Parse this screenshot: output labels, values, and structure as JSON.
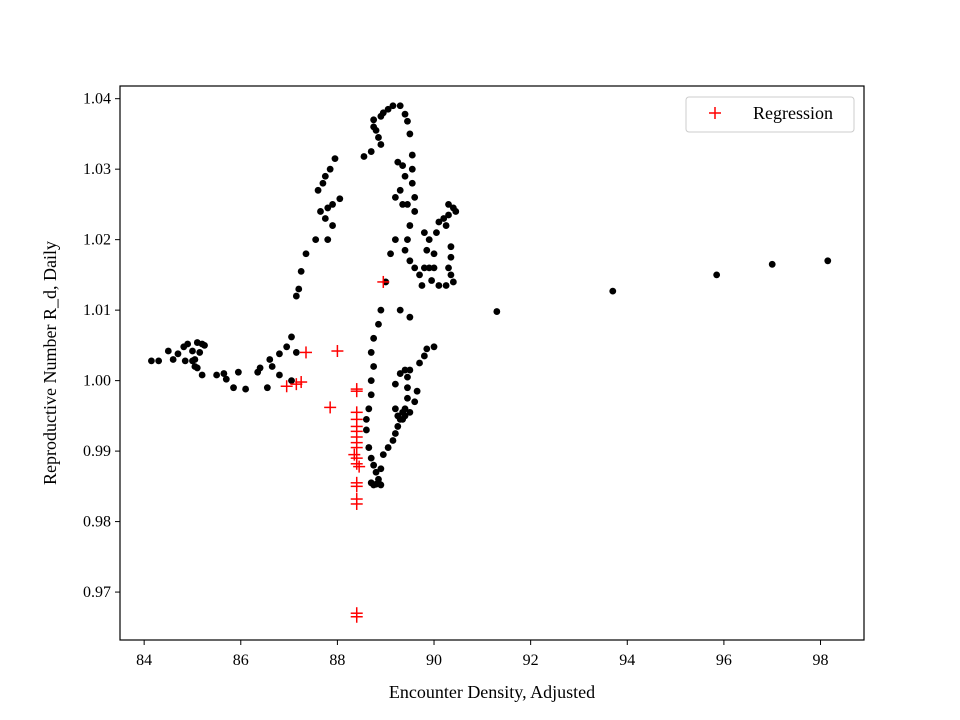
{
  "chart_data": {
    "type": "scatter",
    "title": "",
    "xlabel": "Encounter Density, Adjusted",
    "ylabel": "Reproductive Number R_d, Daily",
    "xlim": [
      83.5,
      98.9
    ],
    "ylim": [
      0.9632,
      1.0418
    ],
    "xticks": [
      84,
      86,
      88,
      90,
      92,
      94,
      96,
      98
    ],
    "yticks": [
      0.97,
      0.98,
      0.99,
      1.0,
      1.01,
      1.02,
      1.03,
      1.04
    ],
    "ytick_labels": [
      "0.97",
      "0.98",
      "0.99",
      "1.00",
      "1.01",
      "1.02",
      "1.03",
      "1.04"
    ],
    "grid": false,
    "legend": {
      "position": "top-right",
      "entries": [
        "Regression"
      ]
    },
    "colors": {
      "observed": "#000000",
      "regression": "#ff0000"
    },
    "series": [
      {
        "marker": "dot",
        "points": [
          [
            84.15,
            1.0028
          ],
          [
            84.3,
            1.0028
          ],
          [
            84.5,
            1.0042
          ],
          [
            84.6,
            1.003
          ],
          [
            84.7,
            1.0038
          ],
          [
            84.85,
            1.0028
          ],
          [
            84.82,
            1.0048
          ],
          [
            84.9,
            1.0052
          ],
          [
            85.0,
            1.0028
          ],
          [
            85.0,
            1.0042
          ],
          [
            85.05,
            1.003
          ],
          [
            85.05,
            1.002
          ],
          [
            85.1,
            1.0054
          ],
          [
            85.15,
            1.004
          ],
          [
            85.1,
            1.0018
          ],
          [
            85.2,
            1.0052
          ],
          [
            85.25,
            1.005
          ],
          [
            85.2,
            1.0008
          ],
          [
            85.5,
            1.0008
          ],
          [
            85.7,
            1.0002
          ],
          [
            85.65,
            1.001
          ],
          [
            85.85,
            0.999
          ],
          [
            85.95,
            1.0012
          ],
          [
            86.1,
            0.9988
          ],
          [
            86.35,
            1.0012
          ],
          [
            86.4,
            1.0018
          ],
          [
            86.55,
            0.999
          ],
          [
            86.6,
            1.003
          ],
          [
            86.65,
            1.002
          ],
          [
            86.8,
            1.0008
          ],
          [
            86.8,
            1.0038
          ],
          [
            86.95,
            1.0048
          ],
          [
            87.05,
            1.0062
          ],
          [
            87.15,
            1.004
          ],
          [
            87.05,
            1.0
          ],
          [
            87.15,
            1.012
          ],
          [
            87.2,
            1.013
          ],
          [
            87.25,
            1.0155
          ],
          [
            87.35,
            1.018
          ],
          [
            87.55,
            1.02
          ],
          [
            87.65,
            1.024
          ],
          [
            87.6,
            1.027
          ],
          [
            87.7,
            1.028
          ],
          [
            87.75,
            1.029
          ],
          [
            87.85,
            1.03
          ],
          [
            87.95,
            1.0315
          ],
          [
            87.75,
            1.023
          ],
          [
            87.8,
            1.0245
          ],
          [
            87.9,
            1.025
          ],
          [
            87.8,
            1.02
          ],
          [
            87.9,
            1.022
          ],
          [
            88.05,
            1.0258
          ],
          [
            88.55,
            1.0318
          ],
          [
            88.7,
            1.0325
          ],
          [
            88.75,
            1.037
          ],
          [
            88.75,
            1.036
          ],
          [
            88.8,
            1.0355
          ],
          [
            88.85,
            1.0345
          ],
          [
            88.9,
            1.0335
          ],
          [
            88.9,
            1.0375
          ],
          [
            88.95,
            1.038
          ],
          [
            89.05,
            1.0385
          ],
          [
            89.15,
            1.039
          ],
          [
            89.3,
            1.039
          ],
          [
            89.4,
            1.0378
          ],
          [
            89.45,
            1.0368
          ],
          [
            89.5,
            1.035
          ],
          [
            89.55,
            1.032
          ],
          [
            89.55,
            1.03
          ],
          [
            89.55,
            1.028
          ],
          [
            89.6,
            1.026
          ],
          [
            89.6,
            1.024
          ],
          [
            89.5,
            1.022
          ],
          [
            89.45,
            1.02
          ],
          [
            89.4,
            1.0185
          ],
          [
            89.5,
            1.017
          ],
          [
            89.6,
            1.016
          ],
          [
            89.7,
            1.015
          ],
          [
            89.75,
            1.0135
          ],
          [
            89.8,
            1.016
          ],
          [
            89.85,
            1.0185
          ],
          [
            89.8,
            1.021
          ],
          [
            89.9,
            1.02
          ],
          [
            90.0,
            1.018
          ],
          [
            90.05,
            1.021
          ],
          [
            90.1,
            1.0225
          ],
          [
            90.2,
            1.023
          ],
          [
            90.25,
            1.022
          ],
          [
            90.3,
            1.0235
          ],
          [
            90.3,
            1.025
          ],
          [
            90.4,
            1.0245
          ],
          [
            90.45,
            1.024
          ],
          [
            90.35,
            1.019
          ],
          [
            90.35,
            1.0175
          ],
          [
            90.3,
            1.016
          ],
          [
            90.35,
            1.015
          ],
          [
            90.4,
            1.014
          ],
          [
            90.25,
            1.0135
          ],
          [
            90.1,
            1.0135
          ],
          [
            90.0,
            1.016
          ],
          [
            89.9,
            1.016
          ],
          [
            89.25,
            1.031
          ],
          [
            89.35,
            1.0305
          ],
          [
            89.4,
            1.029
          ],
          [
            89.3,
            1.027
          ],
          [
            89.2,
            1.026
          ],
          [
            89.35,
            1.025
          ],
          [
            89.45,
            1.025
          ],
          [
            89.2,
            1.02
          ],
          [
            89.1,
            1.018
          ],
          [
            89.0,
            1.014
          ],
          [
            88.9,
            1.01
          ],
          [
            88.85,
            1.008
          ],
          [
            88.75,
            1.006
          ],
          [
            88.7,
            1.004
          ],
          [
            88.75,
            1.002
          ],
          [
            88.7,
            1.0
          ],
          [
            88.7,
            0.998
          ],
          [
            88.65,
            0.996
          ],
          [
            88.6,
            0.9945
          ],
          [
            88.6,
            0.993
          ],
          [
            88.65,
            0.9905
          ],
          [
            88.7,
            0.989
          ],
          [
            88.75,
            0.988
          ],
          [
            88.8,
            0.987
          ],
          [
            88.85,
            0.986
          ],
          [
            88.7,
            0.9855
          ],
          [
            88.75,
            0.9852
          ],
          [
            88.8,
            0.9853
          ],
          [
            88.85,
            0.9855
          ],
          [
            88.9,
            0.9852
          ],
          [
            88.9,
            0.9875
          ],
          [
            88.95,
            0.9895
          ],
          [
            89.05,
            0.9905
          ],
          [
            89.15,
            0.9915
          ],
          [
            89.2,
            0.9925
          ],
          [
            89.25,
            0.9935
          ],
          [
            89.3,
            0.9945
          ],
          [
            89.35,
            0.9955
          ],
          [
            89.4,
            0.996
          ],
          [
            89.45,
            0.9975
          ],
          [
            89.45,
            0.999
          ],
          [
            89.45,
            1.0005
          ],
          [
            89.5,
            1.0015
          ],
          [
            89.4,
            1.0015
          ],
          [
            89.3,
            1.001
          ],
          [
            89.2,
            0.9995
          ],
          [
            89.2,
            0.996
          ],
          [
            89.25,
            0.995
          ],
          [
            89.35,
            0.9945
          ],
          [
            89.4,
            0.995
          ],
          [
            89.5,
            0.9955
          ],
          [
            89.6,
            0.997
          ],
          [
            89.65,
            0.9985
          ],
          [
            89.7,
            1.0025
          ],
          [
            89.8,
            1.0035
          ],
          [
            89.85,
            1.0045
          ],
          [
            90.0,
            1.0048
          ],
          [
            89.95,
            1.0142
          ],
          [
            89.5,
            1.009
          ],
          [
            89.3,
            1.01
          ],
          [
            91.3,
            1.0098
          ],
          [
            93.7,
            1.0127
          ],
          [
            95.85,
            1.015
          ],
          [
            97.0,
            1.0165
          ],
          [
            98.15,
            1.017
          ]
        ]
      },
      {
        "name": "Regression",
        "marker": "plus",
        "points": [
          [
            87.35,
            1.004
          ],
          [
            88.0,
            1.0042
          ],
          [
            86.95,
            0.9992
          ],
          [
            87.15,
            0.9995
          ],
          [
            87.25,
            0.9998
          ],
          [
            87.85,
            0.9962
          ],
          [
            88.95,
            1.014
          ],
          [
            88.4,
            0.9988
          ],
          [
            88.4,
            0.9985
          ],
          [
            88.4,
            0.9955
          ],
          [
            88.4,
            0.9945
          ],
          [
            88.4,
            0.9935
          ],
          [
            88.4,
            0.9928
          ],
          [
            88.4,
            0.992
          ],
          [
            88.4,
            0.9912
          ],
          [
            88.4,
            0.9905
          ],
          [
            88.35,
            0.9895
          ],
          [
            88.4,
            0.989
          ],
          [
            88.4,
            0.9882
          ],
          [
            88.45,
            0.9878
          ],
          [
            88.4,
            0.9855
          ],
          [
            88.4,
            0.985
          ],
          [
            88.4,
            0.9832
          ],
          [
            88.4,
            0.9825
          ],
          [
            88.4,
            0.967
          ],
          [
            88.4,
            0.9665
          ]
        ]
      }
    ]
  }
}
